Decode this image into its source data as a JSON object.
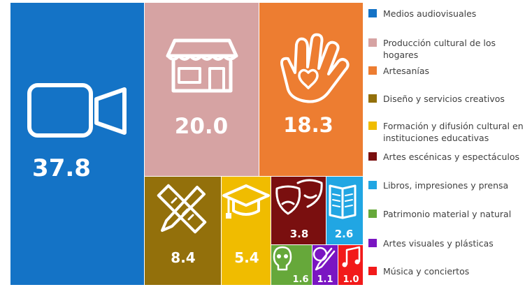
{
  "chart_data": {
    "type": "treemap",
    "categories": [
      "Medios audiovisuales",
      "Producción cultural de los hogares",
      "Artesanías",
      "Diseño y servicios creativos",
      "Formación y difusión cultural en instituciones educativas",
      "Artes escénicas y espectáculos",
      "Libros, impresiones y prensa",
      "Patrimonio material y natural",
      "Artes visuales y plásticas",
      "Música y conciertos"
    ],
    "values": [
      37.8,
      20.0,
      18.3,
      8.4,
      5.4,
      3.8,
      2.6,
      1.6,
      1.1,
      1.0
    ],
    "value_labels": [
      "37.8",
      "20.0",
      "18.3",
      "8.4",
      "5.4",
      "3.8",
      "2.6",
      "1.6",
      "1.1",
      "1.0"
    ],
    "colors": [
      "#1473c6",
      "#d6a3a3",
      "#ed7d31",
      "#93700b",
      "#f0bc00",
      "#7a0f0f",
      "#21a6e3",
      "#66a83a",
      "#7a15c2",
      "#f21a1a"
    ],
    "icons": [
      "video-camera-icon",
      "storefront-icon",
      "hand-heart-icon",
      "ruler-pencil-icon",
      "graduation-cap-icon",
      "theater-masks-icon",
      "open-book-icon",
      "skull-icon",
      "paintbrush-palette-icon",
      "music-note-icon"
    ],
    "legend_position": "right"
  }
}
